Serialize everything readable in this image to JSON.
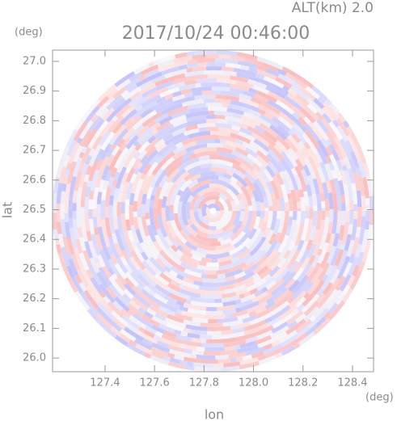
{
  "chart_data": {
    "type": "ppi",
    "title": "2017/10/24 00:46:00",
    "altitude_label": "ALT(km) 2.0",
    "y_unit": "(deg)",
    "x_unit": "(deg)",
    "xlabel": "lon",
    "ylabel": "lat",
    "xlim": [
      127.188,
      128.485
    ],
    "ylim": [
      25.954,
      27.038
    ],
    "xticks": [
      127.4,
      127.6,
      127.8,
      {
        "value": 128.0,
        "label": "128.0"
      },
      128.2,
      128.4
    ],
    "yticks": [
      {
        "value": 26.0,
        "label": "26.0"
      },
      26.1,
      26.2,
      26.3,
      26.4,
      26.5,
      26.6,
      26.7,
      26.8,
      26.9,
      {
        "value": 27.0,
        "label": "27.0"
      }
    ]
  }
}
